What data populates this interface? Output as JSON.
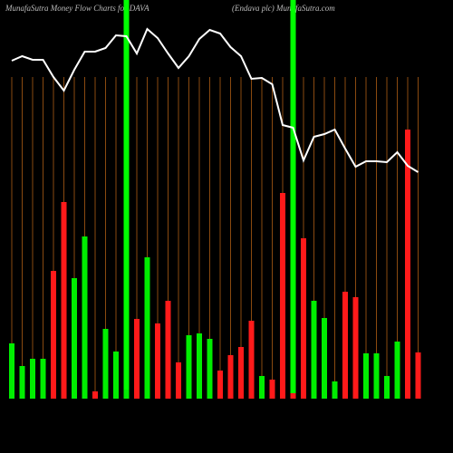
{
  "chart_data": {
    "type": "bar",
    "title": "MunafaSutra  Money Flow  Charts for DAVA",
    "subtitle": "(Endava  plc) MunafaSutra.com",
    "values": [
      61,
      36,
      44,
      44,
      141,
      217,
      133,
      179,
      8,
      77,
      52,
      10,
      88,
      156,
      83,
      108,
      40,
      70,
      72,
      66,
      31,
      48,
      57,
      86,
      25,
      21,
      227,
      6,
      177,
      108,
      89,
      19,
      118,
      112,
      50,
      50,
      25,
      63,
      297,
      51
    ],
    "colors": [
      "#00ee00",
      "#00ee00",
      "#00ee00",
      "#00ee00",
      "#ff1a1a",
      "#ff1a1a",
      "#00ee00",
      "#00ee00",
      "#ff1a1a",
      "#00ee00",
      "#00ee00",
      "#00ee00",
      "#ff1a1a",
      "#00ee00",
      "#ff1a1a",
      "#ff1a1a",
      "#ff1a1a",
      "#00ee00",
      "#00ee00",
      "#00ee00",
      "#ff1a1a",
      "#ff1a1a",
      "#ff1a1a",
      "#ff1a1a",
      "#00ee00",
      "#ff1a1a",
      "#ff1a1a",
      "#ff1a1a",
      "#ff1a1a",
      "#00ee00",
      "#00ee00",
      "#00ee00",
      "#ff1a1a",
      "#ff1a1a",
      "#00ee00",
      "#00ee00",
      "#00ee00",
      "#00ee00",
      "#ff1a1a",
      "#ff1a1a"
    ],
    "line": {
      "color": "#ffffff",
      "values": [
        373,
        378,
        374,
        374,
        355,
        340,
        363,
        383,
        383,
        387,
        401,
        400,
        381,
        408,
        398,
        381,
        365,
        378,
        397,
        407,
        403,
        388,
        378,
        353,
        354,
        347,
        302,
        299,
        263,
        289,
        292,
        297,
        276,
        256,
        262,
        262,
        261,
        272,
        257,
        250
      ]
    },
    "highlight": {
      "color": "#00ff00",
      "indices": [
        11,
        27
      ]
    },
    "guide_color": "#8a4a10",
    "ylim": [
      0,
      440
    ]
  }
}
